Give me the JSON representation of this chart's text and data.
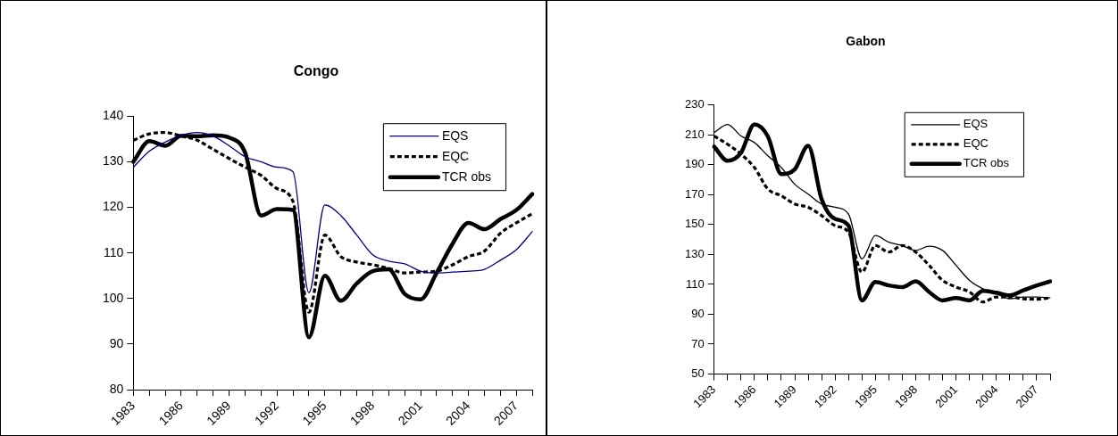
{
  "chart_data": [
    {
      "type": "line",
      "title": "Congo",
      "categories": [
        "1983",
        null,
        null,
        "1986",
        null,
        null,
        "1989",
        null,
        null,
        "1992",
        null,
        null,
        "1995",
        null,
        null,
        "1998",
        null,
        null,
        "2001",
        null,
        null,
        "2004",
        null,
        null,
        "2007",
        null
      ],
      "series": [
        {
          "name": "EQS",
          "color": "#000080",
          "line_style": "solid",
          "values": [
            128.8,
            132.3,
            134.3,
            135.8,
            136.4,
            135.6,
            133.5,
            131.1,
            130,
            128.8,
            127.8,
            101.3,
            120.5,
            118.2,
            113.9,
            109.6,
            108.2,
            107.6,
            106,
            105.6,
            105.8,
            106,
            106.4,
            108.4,
            110.7,
            114.7
          ]
        },
        {
          "name": "EQC",
          "color": "#000000",
          "line_style": "dashed",
          "values": [
            134.7,
            136.1,
            136.4,
            135.6,
            134.7,
            132.7,
            130.7,
            128.8,
            127,
            124.1,
            121.3,
            97,
            113.9,
            109.2,
            108,
            107.4,
            106.6,
            105.6,
            105.8,
            106,
            107.4,
            109.2,
            110.4,
            114.3,
            116.6,
            118.6
          ]
        },
        {
          "name": "TCR obs",
          "color": "#000000",
          "line_style": "solid",
          "values": [
            130,
            134.5,
            133.5,
            135.7,
            135.6,
            135.8,
            135.3,
            132,
            118.2,
            119.6,
            119.4,
            91.5,
            105,
            99.5,
            103.3,
            106,
            106.4,
            101,
            99.8,
            105.6,
            112,
            116.6,
            115.2,
            117.4,
            119.4,
            122.9
          ]
        }
      ],
      "ylim": [
        80,
        140
      ],
      "yticks": [
        80,
        90,
        100,
        110,
        120,
        130,
        140
      ],
      "grid": false,
      "legend": "top right",
      "marker": "none"
    },
    {
      "type": "line",
      "title": "Gabon",
      "categories": [
        "1983",
        null,
        null,
        "1986",
        null,
        null,
        "1989",
        null,
        null,
        "1992",
        null,
        null,
        "1995",
        null,
        null,
        "1998",
        null,
        null,
        "2001",
        null,
        null,
        "2004",
        null,
        null,
        "2007",
        null
      ],
      "series": [
        {
          "name": "EQS",
          "color": "#000000",
          "line_style": "solid",
          "values": [
            211.6,
            217,
            209.3,
            204.9,
            196,
            188.2,
            177,
            170.4,
            163.8,
            161.6,
            157,
            127,
            142.7,
            138.2,
            136,
            132.7,
            135.6,
            132.7,
            122.7,
            112.7,
            107.1,
            103.8,
            100.4,
            101.6,
            101.6,
            101
          ]
        },
        {
          "name": "EQC",
          "color": "#000000",
          "line_style": "dashed",
          "values": [
            209.3,
            203.8,
            197.1,
            188.2,
            173.8,
            169.3,
            163.8,
            161.6,
            156,
            149.3,
            144.9,
            118.2,
            136,
            131.6,
            136,
            131.6,
            122.7,
            112.7,
            108.2,
            104.9,
            98.2,
            101.6,
            101.6,
            100.4,
            100,
            101
          ]
        },
        {
          "name": "TCR obs",
          "color": "#000000",
          "line_style": "solid",
          "values": [
            202.2,
            192.7,
            198,
            217,
            209,
            183.8,
            187,
            202.7,
            167,
            153.8,
            149.3,
            99.3,
            111.6,
            109.3,
            108.2,
            112,
            104.9,
            99.3,
            100.9,
            99.3,
            105.6,
            104.4,
            102.7,
            106,
            109.3,
            112
          ]
        }
      ],
      "ylim": [
        50,
        230
      ],
      "yticks": [
        50,
        70,
        90,
        110,
        130,
        150,
        170,
        190,
        210,
        230
      ],
      "grid": false,
      "legend": "top right",
      "marker": "none"
    }
  ]
}
